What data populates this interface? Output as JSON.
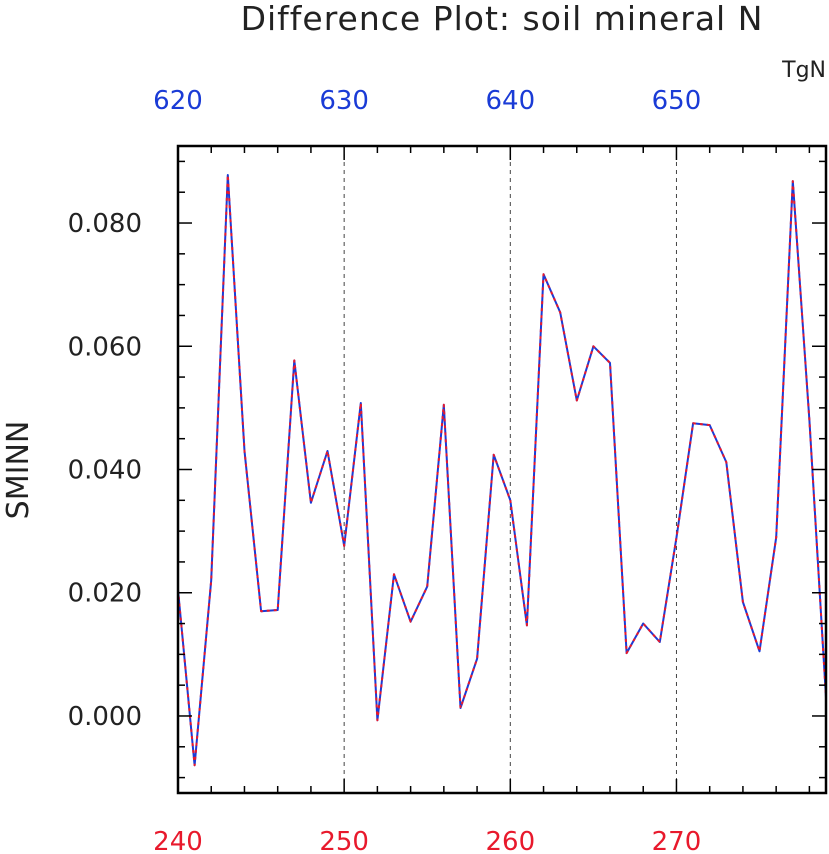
{
  "chart_data": {
    "type": "line",
    "title": "Difference Plot: soil mineral N",
    "units": "TgN",
    "ylabel": "SMINN",
    "xlabel": "",
    "xlim": [
      240,
      279
    ],
    "ylim": [
      -0.0125,
      0.0925
    ],
    "grid": "vertical dashed lines at major bottom ticks",
    "x_bottom_ticks": [
      240,
      250,
      260,
      270
    ],
    "x_bottom_tick_labels": [
      "240",
      "250",
      "260",
      "270"
    ],
    "x_bottom_color": "#e8192c",
    "x_top_tick_labels": [
      "620",
      "630",
      "640",
      "650"
    ],
    "x_top_color": "#1a3bd6",
    "y_ticks": [
      0.0,
      0.02,
      0.04,
      0.06,
      0.08
    ],
    "y_tick_labels": [
      "0.000",
      "0.020",
      "0.040",
      "0.060",
      "0.080"
    ],
    "series": [
      {
        "style": "solid",
        "color": "#1a3bd6",
        "x": [
          240,
          241,
          242,
          243,
          244,
          245,
          246,
          247,
          248,
          249,
          250,
          251,
          252,
          253,
          254,
          255,
          256,
          257,
          258,
          259,
          260,
          261,
          262,
          263,
          264,
          265,
          266,
          267,
          268,
          269,
          270,
          271,
          272,
          273,
          274,
          275,
          276,
          277,
          278,
          279
        ],
        "values": [
          0.0205,
          -0.008,
          0.022,
          0.0878,
          0.043,
          0.017,
          0.0172,
          0.0577,
          0.0346,
          0.043,
          0.0276,
          0.0508,
          -0.0007,
          0.023,
          0.0153,
          0.021,
          0.0505,
          0.0013,
          0.0093,
          0.0424,
          0.035,
          0.0147,
          0.0717,
          0.0655,
          0.0512,
          0.06,
          0.0573,
          0.0102,
          0.015,
          0.012,
          0.029,
          0.0475,
          0.0472,
          0.0412,
          0.0185,
          0.0105,
          0.029,
          0.0868,
          0.048,
          0.003
        ]
      },
      {
        "style": "dashed",
        "color": "#e8192c",
        "x": [
          240,
          241,
          242,
          243,
          244,
          245,
          246,
          247,
          248,
          249,
          250,
          251,
          252,
          253,
          254,
          255,
          256,
          257,
          258,
          259,
          260,
          261,
          262,
          263,
          264,
          265,
          266,
          267,
          268,
          269,
          270,
          271,
          272,
          273,
          274,
          275,
          276,
          277,
          278,
          279
        ],
        "values": [
          0.0205,
          -0.008,
          0.022,
          0.0878,
          0.043,
          0.017,
          0.0172,
          0.0577,
          0.0346,
          0.043,
          0.0276,
          0.0508,
          -0.0007,
          0.023,
          0.0153,
          0.021,
          0.0505,
          0.0013,
          0.0093,
          0.0424,
          0.035,
          0.0147,
          0.0717,
          0.0655,
          0.0512,
          0.06,
          0.0573,
          0.0102,
          0.015,
          0.012,
          0.029,
          0.0475,
          0.0472,
          0.0412,
          0.0185,
          0.0105,
          0.029,
          0.0868,
          0.048,
          0.003
        ]
      }
    ]
  }
}
